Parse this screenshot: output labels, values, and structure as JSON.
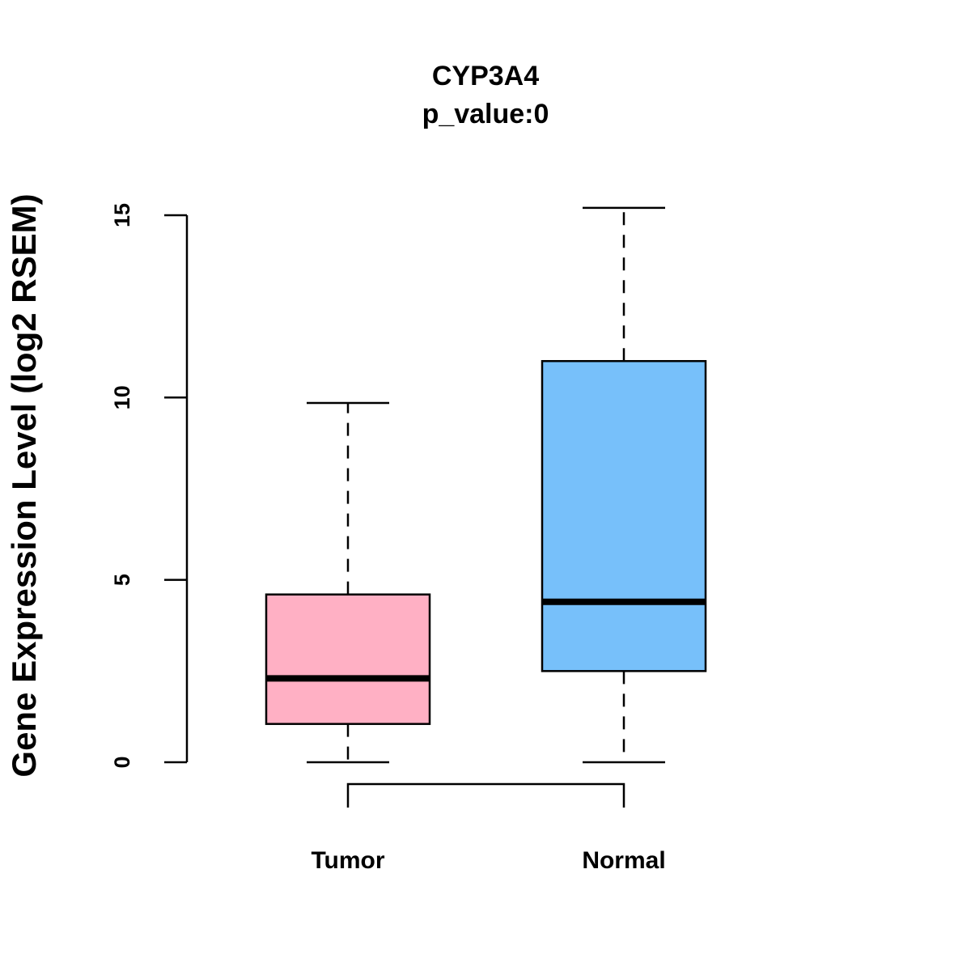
{
  "chart_data": {
    "type": "boxplot",
    "title": "CYP3A4",
    "subtitle": "p_value:0",
    "xlabel": "",
    "ylabel": "Gene Expression Level (log2 RSEM)",
    "ylim": [
      0,
      15.5
    ],
    "yticks": [
      0,
      5,
      10,
      15
    ],
    "grid": false,
    "legend": "none",
    "categories": [
      "Tumor",
      "Normal"
    ],
    "boxes": [
      {
        "label": "Tumor",
        "color": "#FFB0C4",
        "min": 0,
        "q1": 1.05,
        "median": 2.3,
        "q3": 4.6,
        "max": 9.85
      },
      {
        "label": "Normal",
        "color": "#77C0FA",
        "min": 0,
        "q1": 2.5,
        "median": 4.4,
        "q3": 11.0,
        "max": 15.2
      }
    ],
    "comparison_bracket": [
      "Tumor",
      "Normal"
    ]
  }
}
